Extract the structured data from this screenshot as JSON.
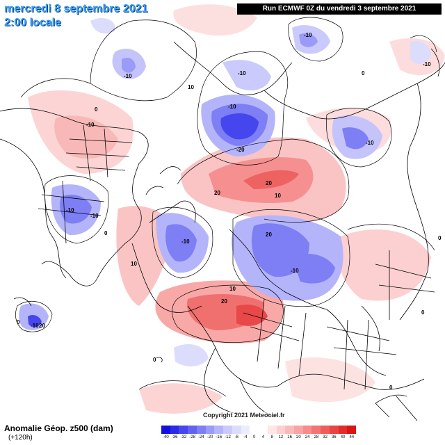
{
  "header": {
    "date": "mercredi 8 septembre 2021",
    "time": "2:00 locale",
    "run": "Run ECMWF 0Z du vendredi 3 septembre 2021"
  },
  "footer": {
    "variable": "Anomalie Géop. z500 (dam)",
    "lead": "(+120h)",
    "copyright": "Copyright 2021 Meteociel.fr"
  },
  "legend": {
    "ticks": [
      "-40",
      "-36",
      "-32",
      "-28",
      "-24",
      "-20",
      "-16",
      "-12",
      "-8",
      "-4",
      "0",
      "4",
      "8",
      "12",
      "16",
      "20",
      "24",
      "28",
      "32",
      "36",
      "40",
      "44"
    ],
    "colors": [
      "#1010e0",
      "#2a2ae8",
      "#4646ee",
      "#6262f2",
      "#7e7ef5",
      "#9a9af8",
      "#b4b4fa",
      "#cacafc",
      "#dcdcfd",
      "#ececfe",
      "#ffffff",
      "#ffffff",
      "#fee6e6",
      "#fdd0d0",
      "#fbbaba",
      "#f9a3a3",
      "#f68c8c",
      "#f27474",
      "#ee5c5c",
      "#e84444",
      "#e22c2c",
      "#d81414"
    ]
  },
  "contour_labels": [
    {
      "text": "-10"
    },
    {
      "text": "-10"
    },
    {
      "text": "-10"
    },
    {
      "text": "-10"
    },
    {
      "text": "-20"
    },
    {
      "text": "-10"
    },
    {
      "text": "-10"
    },
    {
      "text": "0"
    },
    {
      "text": "10"
    },
    {
      "text": "0"
    },
    {
      "text": "10"
    },
    {
      "text": "20"
    },
    {
      "text": "20"
    },
    {
      "text": "-10"
    },
    {
      "text": "-10"
    },
    {
      "text": "-10"
    },
    {
      "text": "20"
    },
    {
      "text": "-10"
    },
    {
      "text": "10"
    },
    {
      "text": "20"
    },
    {
      "text": "-10"
    },
    {
      "text": "0"
    },
    {
      "text": "10"
    },
    {
      "text": "20"
    },
    {
      "text": "0"
    },
    {
      "text": "0"
    },
    {
      "text": "-10"
    },
    {
      "text": "0"
    },
    {
      "text": "0"
    },
    {
      "text": "0"
    }
  ]
}
